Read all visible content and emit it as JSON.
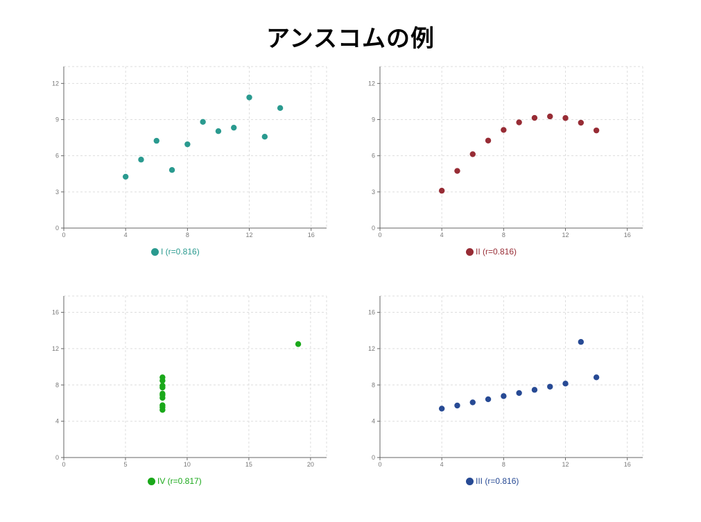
{
  "title": "アンスコムの例",
  "chart_data": [
    {
      "type": "scatter",
      "name": "I",
      "legend": "I (r=0.816)",
      "color": "#2a9a8f",
      "xlim": [
        0,
        17
      ],
      "ylim": [
        0,
        13.4
      ],
      "xticks": [
        0,
        4,
        8,
        12,
        16
      ],
      "yticks": [
        0,
        3,
        6,
        9,
        12
      ],
      "grid": true,
      "legend_position": "bottom",
      "x": [
        10,
        8,
        13,
        9,
        11,
        14,
        6,
        4,
        12,
        7,
        5
      ],
      "y": [
        8.04,
        6.95,
        7.58,
        8.81,
        8.33,
        9.96,
        7.24,
        4.26,
        10.84,
        4.82,
        5.68
      ]
    },
    {
      "type": "scatter",
      "name": "II",
      "legend": "II (r=0.816)",
      "color": "#972c35",
      "xlim": [
        0,
        17
      ],
      "ylim": [
        0,
        13.4
      ],
      "xticks": [
        0,
        4,
        8,
        12,
        16
      ],
      "yticks": [
        0,
        3,
        6,
        9,
        12
      ],
      "grid": true,
      "legend_position": "bottom",
      "x": [
        10,
        8,
        13,
        9,
        11,
        14,
        6,
        4,
        12,
        7,
        5
      ],
      "y": [
        9.14,
        8.14,
        8.74,
        8.77,
        9.26,
        8.1,
        6.13,
        3.1,
        9.13,
        7.26,
        4.74
      ]
    },
    {
      "type": "scatter",
      "name": "IV",
      "legend": "IV (r=0.817)",
      "color": "#1aa81a",
      "xlim": [
        0,
        21.3
      ],
      "ylim": [
        0,
        17.8
      ],
      "xticks": [
        0,
        5,
        10,
        15,
        20
      ],
      "yticks": [
        0,
        4,
        8,
        12,
        16
      ],
      "grid": true,
      "legend_position": "bottom",
      "x": [
        8,
        8,
        8,
        8,
        8,
        8,
        8,
        19,
        8,
        8,
        8
      ],
      "y": [
        6.58,
        5.76,
        7.71,
        8.84,
        8.47,
        7.04,
        5.25,
        12.5,
        5.56,
        7.91,
        6.89
      ]
    },
    {
      "type": "scatter",
      "name": "III",
      "legend": "III (r=0.816)",
      "color": "#274a94",
      "xlim": [
        0,
        17
      ],
      "ylim": [
        0,
        17.8
      ],
      "xticks": [
        0,
        4,
        8,
        12,
        16
      ],
      "yticks": [
        0,
        4,
        8,
        12,
        16
      ],
      "grid": true,
      "legend_position": "bottom",
      "x": [
        10,
        8,
        13,
        9,
        11,
        14,
        6,
        4,
        12,
        7,
        5
      ],
      "y": [
        7.46,
        6.77,
        12.74,
        7.11,
        7.81,
        8.84,
        6.08,
        5.39,
        8.15,
        6.42,
        5.73
      ]
    }
  ]
}
